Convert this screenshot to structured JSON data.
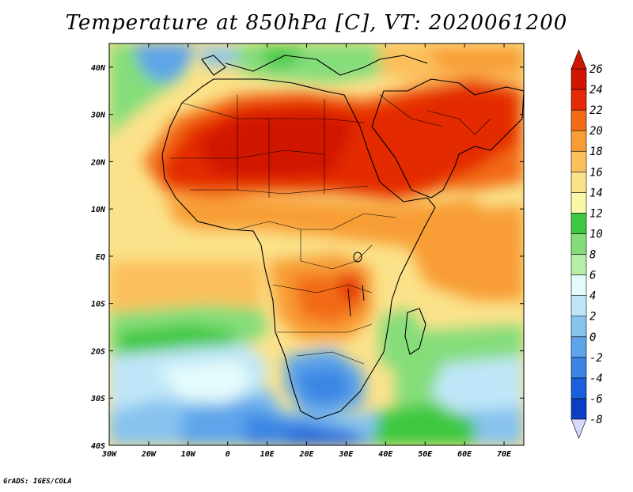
{
  "title": "Temperature at 850hPa [C], VT: 2020061200",
  "map": {
    "lon_labels": [
      "30W",
      "20W",
      "10W",
      "0",
      "10E",
      "20E",
      "30E",
      "40E",
      "50E",
      "60E",
      "70E"
    ],
    "lat_labels": [
      "40N",
      "30N",
      "20N",
      "10N",
      "EQ",
      "10S",
      "20S",
      "30S",
      "40S"
    ]
  },
  "colorbar": {
    "levels": [
      "-8",
      "-6",
      "-4",
      "-2",
      "0",
      "2",
      "4",
      "6",
      "8",
      "10",
      "12",
      "14",
      "16",
      "18",
      "20",
      "22",
      "24",
      "26"
    ],
    "colors": [
      "#1a2287",
      "#0a3fc4",
      "#1c5fdc",
      "#3a85e4",
      "#5da4ea",
      "#87c3ef",
      "#bfe6f8",
      "#e4fbfb",
      "#b6eda7",
      "#85dd7a",
      "#3ec83f",
      "#fbf7a8",
      "#fbe28a",
      "#fbc05b",
      "#f89d35",
      "#f26b17",
      "#e42a06",
      "#d11500"
    ],
    "low_extend_color": "#d7d7ff",
    "high_extend_color": "#d11500"
  },
  "credit": "GrADS: IGES/COLA"
}
